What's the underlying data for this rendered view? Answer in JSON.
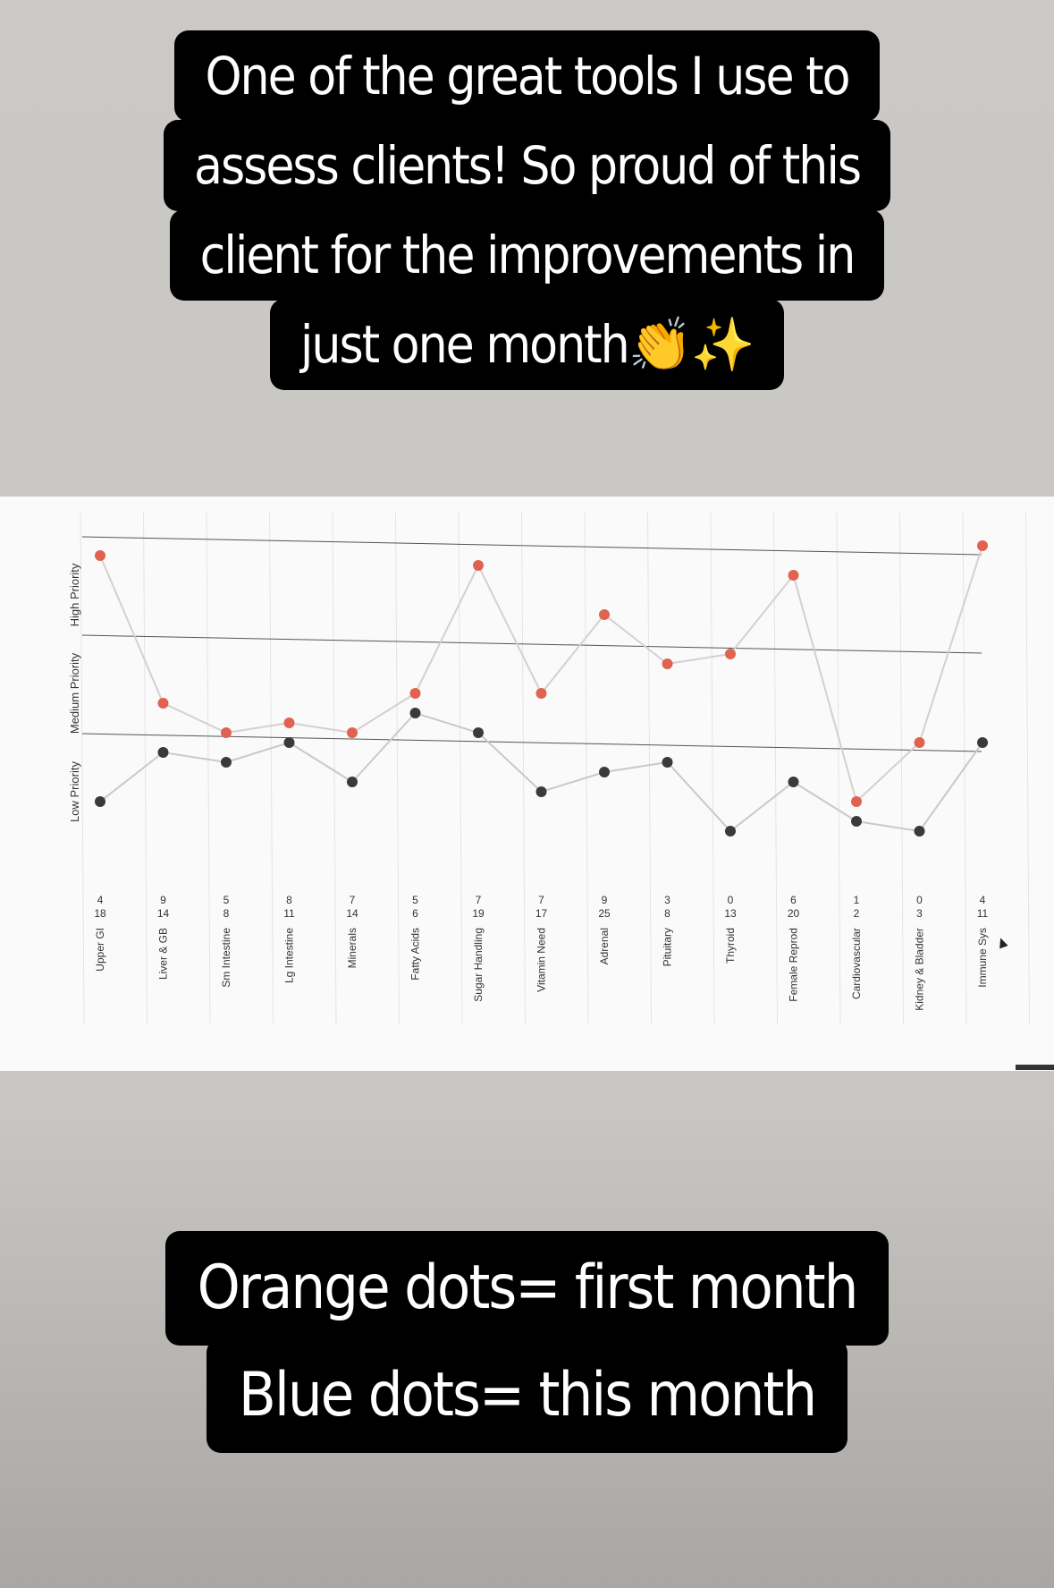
{
  "captions": {
    "top": [
      "One of the great tools I use to",
      "assess clients! So proud of this",
      "client for the improvements in",
      "just one month👏✨"
    ],
    "bottom": [
      "Orange dots= first month",
      "Blue dots= this month"
    ]
  },
  "chart_data": {
    "type": "line",
    "title": "",
    "xlabel": "",
    "ylabel": "",
    "priority_labels": [
      "Low Priority",
      "Medium Priority",
      "High Priority"
    ],
    "categories": [
      "Upper GI",
      "Liver & GB",
      "Sm Intestine",
      "Lg Intestine",
      "Minerals",
      "Fatty Acids",
      "Sugar Handling",
      "Vitamin Need",
      "Adrenal",
      "Pituitary",
      "Thyroid",
      "Female Reprod",
      "Cardiovascular",
      "Kidney & Bladder",
      "Immune Sys"
    ],
    "score_labels_this_month": [
      "4",
      "9",
      "5",
      "8",
      "7",
      "5",
      "7",
      "7",
      "9",
      "3",
      "0",
      "6",
      "1",
      "0",
      "4"
    ],
    "score_labels_first_month": [
      "18",
      "14",
      "8",
      "11",
      "14",
      "6",
      "19",
      "17",
      "25",
      "8",
      "13",
      "20",
      "2",
      "3",
      "11"
    ],
    "series": [
      {
        "name": "first month",
        "color": "#e0634f",
        "values": [
          2.9,
          1.4,
          1.1,
          1.2,
          1.1,
          1.5,
          2.8,
          1.5,
          2.3,
          1.8,
          1.9,
          2.7,
          0.4,
          1.0,
          3.0
        ]
      },
      {
        "name": "this month",
        "color": "#3a3a3a",
        "values": [
          0.4,
          0.9,
          0.8,
          1.0,
          0.6,
          1.3,
          1.1,
          0.5,
          0.7,
          0.8,
          0.1,
          0.6,
          0.2,
          0.1,
          1.0
        ]
      }
    ],
    "ylim": [
      0,
      3
    ],
    "grid": true
  }
}
